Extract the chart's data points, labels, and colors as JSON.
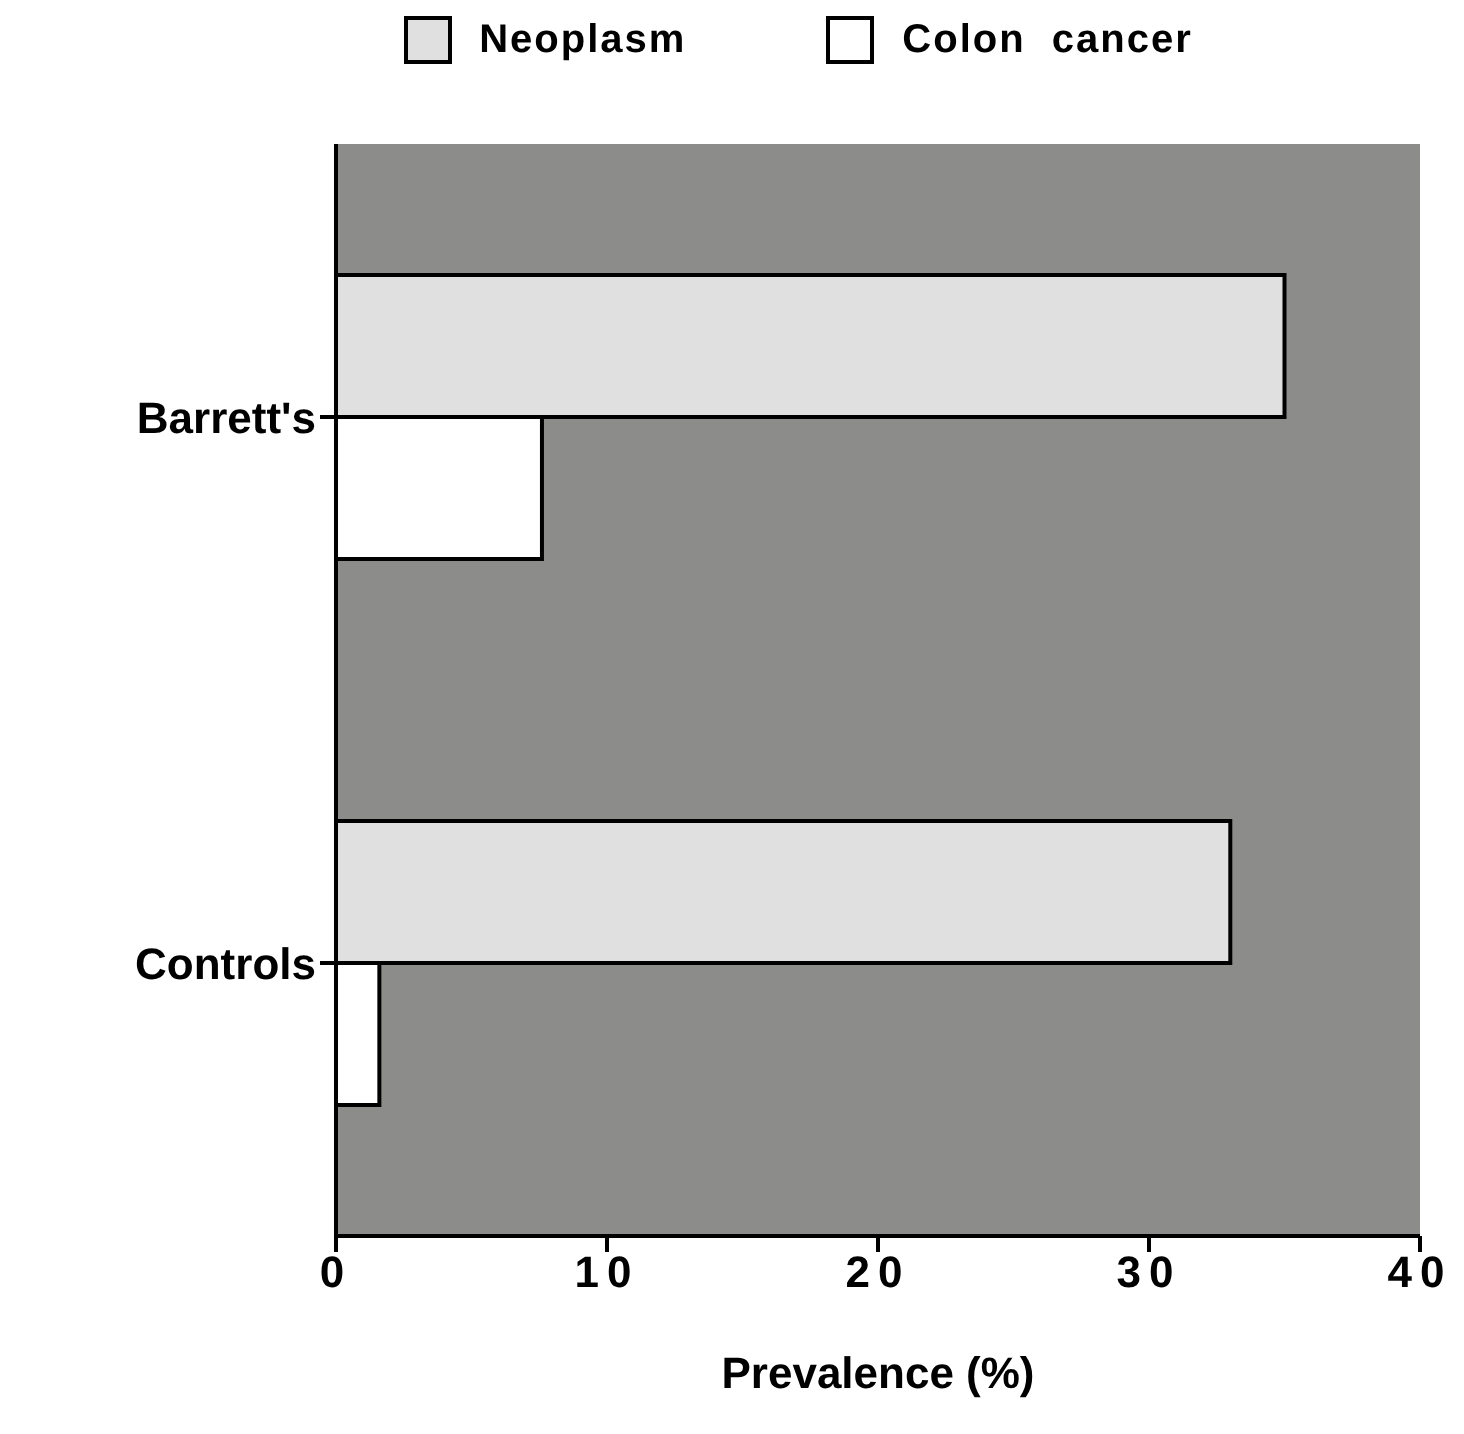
{
  "chart_data": {
    "type": "bar",
    "orientation": "horizontal",
    "categories": [
      "Barrett's",
      "Controls"
    ],
    "series": [
      {
        "name": "Neoplasm",
        "color": "#e0e0e0",
        "values": [
          35,
          33
        ]
      },
      {
        "name": "Colon  cancer",
        "color": "#ffffff",
        "values": [
          7.6,
          1.6
        ]
      }
    ],
    "xlabel": "Prevalence  (%)",
    "xlim": [
      0,
      40
    ],
    "xticks": [
      0,
      10,
      20,
      30,
      40
    ],
    "legend": "top",
    "grid": false
  }
}
